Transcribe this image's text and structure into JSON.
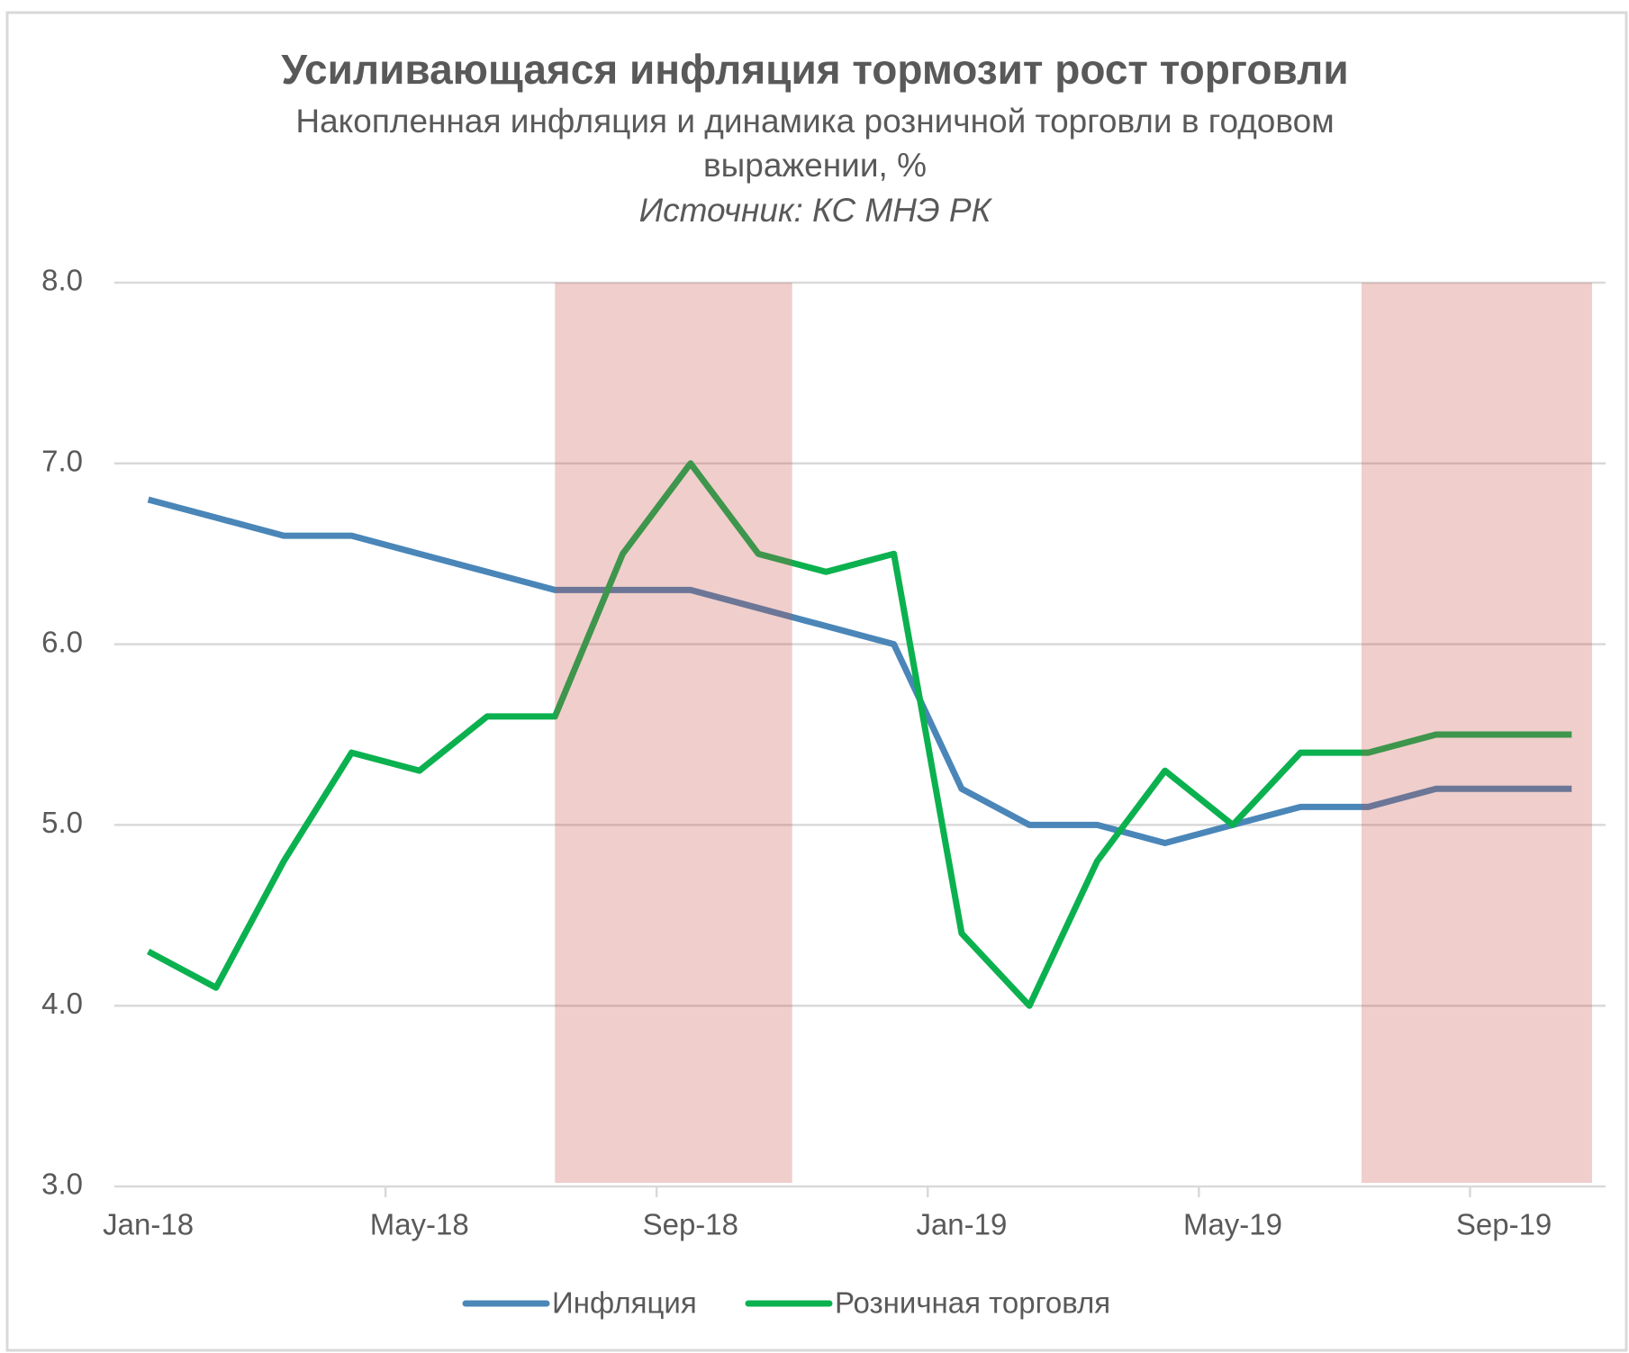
{
  "chart_data": {
    "type": "line",
    "title": "Усиливающаяся инфляция тормозит рост торговли",
    "subtitle": [
      "Накопленная инфляция и динамика розничной торговли в годовом",
      "выражении, %"
    ],
    "source": "Источник: КС МНЭ РК",
    "categories": [
      "Jan-18",
      null,
      null,
      null,
      "May-18",
      null,
      null,
      null,
      "Sep-18",
      null,
      null,
      null,
      "Jan-19",
      null,
      null,
      null,
      "May-19",
      null,
      null,
      null,
      "Sep-19",
      null
    ],
    "series": [
      {
        "name": "Инфляция",
        "color": "#4a86b8",
        "values": [
          6.8,
          6.7,
          6.6,
          6.6,
          6.5,
          6.4,
          6.3,
          6.3,
          6.3,
          6.2,
          6.1,
          6.0,
          5.2,
          5.0,
          5.0,
          4.9,
          5.0,
          5.1,
          5.1,
          5.2,
          5.2,
          5.2
        ]
      },
      {
        "name": "Розничная торговля",
        "color": "#0bb14f",
        "values": [
          4.3,
          4.1,
          4.8,
          5.4,
          5.3,
          5.6,
          5.6,
          6.5,
          7.0,
          6.5,
          6.4,
          6.5,
          4.4,
          4.0,
          4.8,
          5.3,
          5.0,
          5.4,
          5.4,
          5.5,
          5.5,
          5.5
        ]
      }
    ],
    "ylim": [
      3,
      8
    ],
    "yticks": [
      {
        "value": 3,
        "label": "3.0"
      },
      {
        "value": 4,
        "label": "4.0"
      },
      {
        "value": 5,
        "label": "5.0"
      },
      {
        "value": 6,
        "label": "6.0"
      },
      {
        "value": 7,
        "label": "7.0"
      },
      {
        "value": 8,
        "label": "8.0"
      }
    ],
    "grid": true,
    "legend": "bottom",
    "shaded_ranges": [
      [
        6.5,
        10
      ],
      [
        18.4,
        21.8
      ]
    ],
    "shade_color": "rgba(196, 80, 70, 0.28)"
  }
}
